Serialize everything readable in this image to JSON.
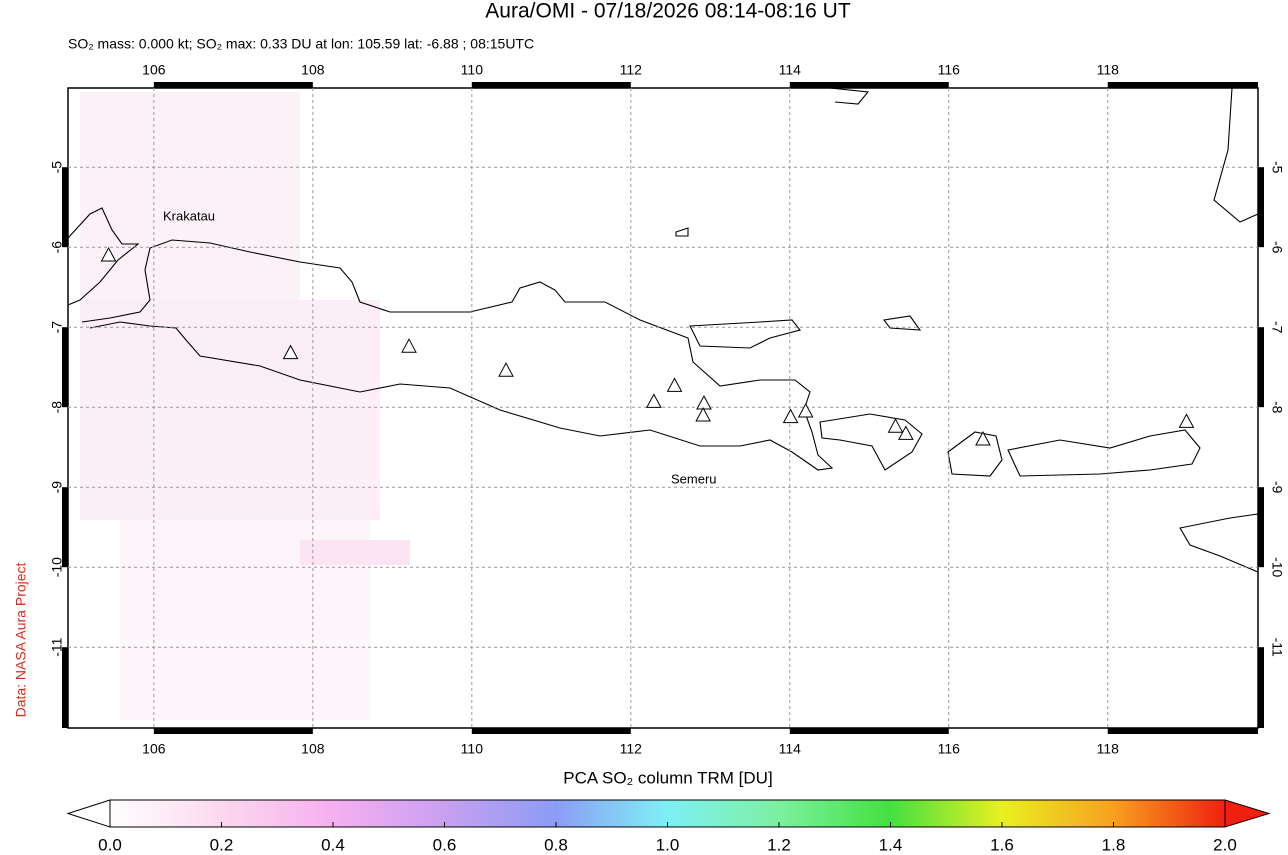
{
  "title": "Aura/OMI - 07/18/2026 08:14-08:16 UT",
  "subtitle": "SO₂ mass: 0.000 kt; SO₂ max: 0.33 DU at lon: 105.59 lat: -6.88 ; 08:15UTC",
  "credit": "Data: NASA Aura Project",
  "map": {
    "xlim": [
      104.92,
      119.89
    ],
    "ylim": [
      -12.01,
      -4.01
    ],
    "xticks": [
      106,
      108,
      110,
      112,
      114,
      116,
      118
    ],
    "yticks": [
      -5,
      -6,
      -7,
      -8,
      -9,
      -10,
      -11
    ],
    "grid": true,
    "volcano_labels": [
      "Krakatau",
      "Semeru"
    ],
    "volcanoes": {
      "lon": [
        105.43,
        107.72,
        109.21,
        110.43,
        112.29,
        112.55,
        112.92,
        112.91,
        114.01,
        114.2,
        115.33,
        115.46,
        116.43,
        118.99
      ],
      "lat": [
        -6.11,
        -7.33,
        -7.25,
        -7.55,
        -7.94,
        -7.74,
        -7.96,
        -8.11,
        -8.13,
        -8.06,
        -8.25,
        -8.34,
        -8.41,
        -8.19
      ]
    }
  },
  "colorbar": {
    "title": "PCA SO₂ column TRM [DU]",
    "lim": [
      0,
      2
    ],
    "ticks": [
      {
        "value": 0,
        "label": "0.0"
      },
      0.2,
      0.4,
      0.6,
      0.8,
      {
        "value": 1,
        "label": "1.0"
      },
      1.2,
      1.4,
      1.6,
      1.8,
      {
        "value": 2,
        "label": "2.0"
      }
    ]
  }
}
